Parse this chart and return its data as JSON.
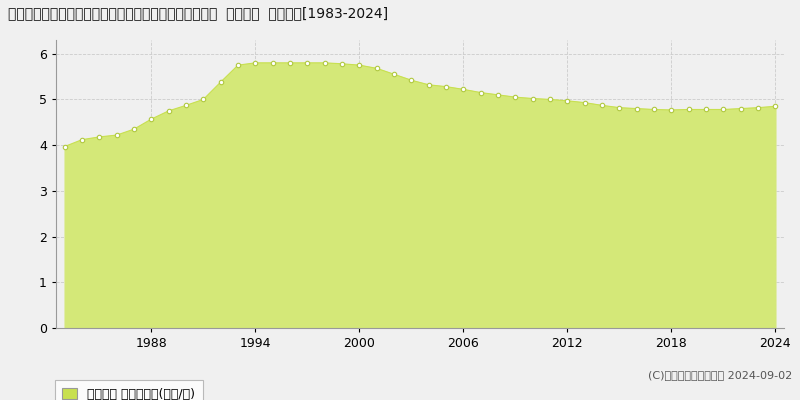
{
  "title": "栃木県下都賀郡壬生町大字安塚字西原２３８９番１１外  地価公示  地価推移[1983-2024]",
  "years": [
    1983,
    1984,
    1985,
    1986,
    1987,
    1988,
    1989,
    1990,
    1991,
    1992,
    1993,
    1994,
    1995,
    1996,
    1997,
    1998,
    1999,
    2000,
    2001,
    2002,
    2003,
    2004,
    2005,
    2006,
    2007,
    2008,
    2009,
    2010,
    2011,
    2012,
    2013,
    2014,
    2015,
    2016,
    2017,
    2018,
    2019,
    2020,
    2021,
    2022,
    2023,
    2024
  ],
  "values": [
    3.97,
    4.12,
    4.18,
    4.22,
    4.35,
    4.57,
    4.75,
    4.87,
    5.0,
    5.38,
    5.75,
    5.8,
    5.8,
    5.8,
    5.8,
    5.8,
    5.78,
    5.75,
    5.68,
    5.55,
    5.42,
    5.32,
    5.28,
    5.22,
    5.15,
    5.1,
    5.05,
    5.02,
    5.0,
    4.97,
    4.93,
    4.87,
    4.82,
    4.8,
    4.78,
    4.77,
    4.78,
    4.78,
    4.78,
    4.8,
    4.82,
    4.85
  ],
  "line_color": "#c8e050",
  "fill_color": "#d4e878",
  "marker_facecolor": "#ffffff",
  "marker_edgecolor": "#b0c840",
  "background_color": "#f0f0f0",
  "plot_bg_color": "#f0f0f0",
  "grid_color": "#cccccc",
  "ylim": [
    0,
    6.3
  ],
  "yticks": [
    0,
    1,
    2,
    3,
    4,
    5,
    6
  ],
  "xtick_years": [
    1988,
    1994,
    2000,
    2006,
    2012,
    2018,
    2024
  ],
  "legend_label": "地価公示 平均坪単価(万円/坪)",
  "legend_patch_color": "#c8e050",
  "copyright_text": "(C)土地価格ドットコム 2024-09-02",
  "title_fontsize": 10,
  "axis_fontsize": 9,
  "legend_fontsize": 9,
  "copyright_fontsize": 8
}
